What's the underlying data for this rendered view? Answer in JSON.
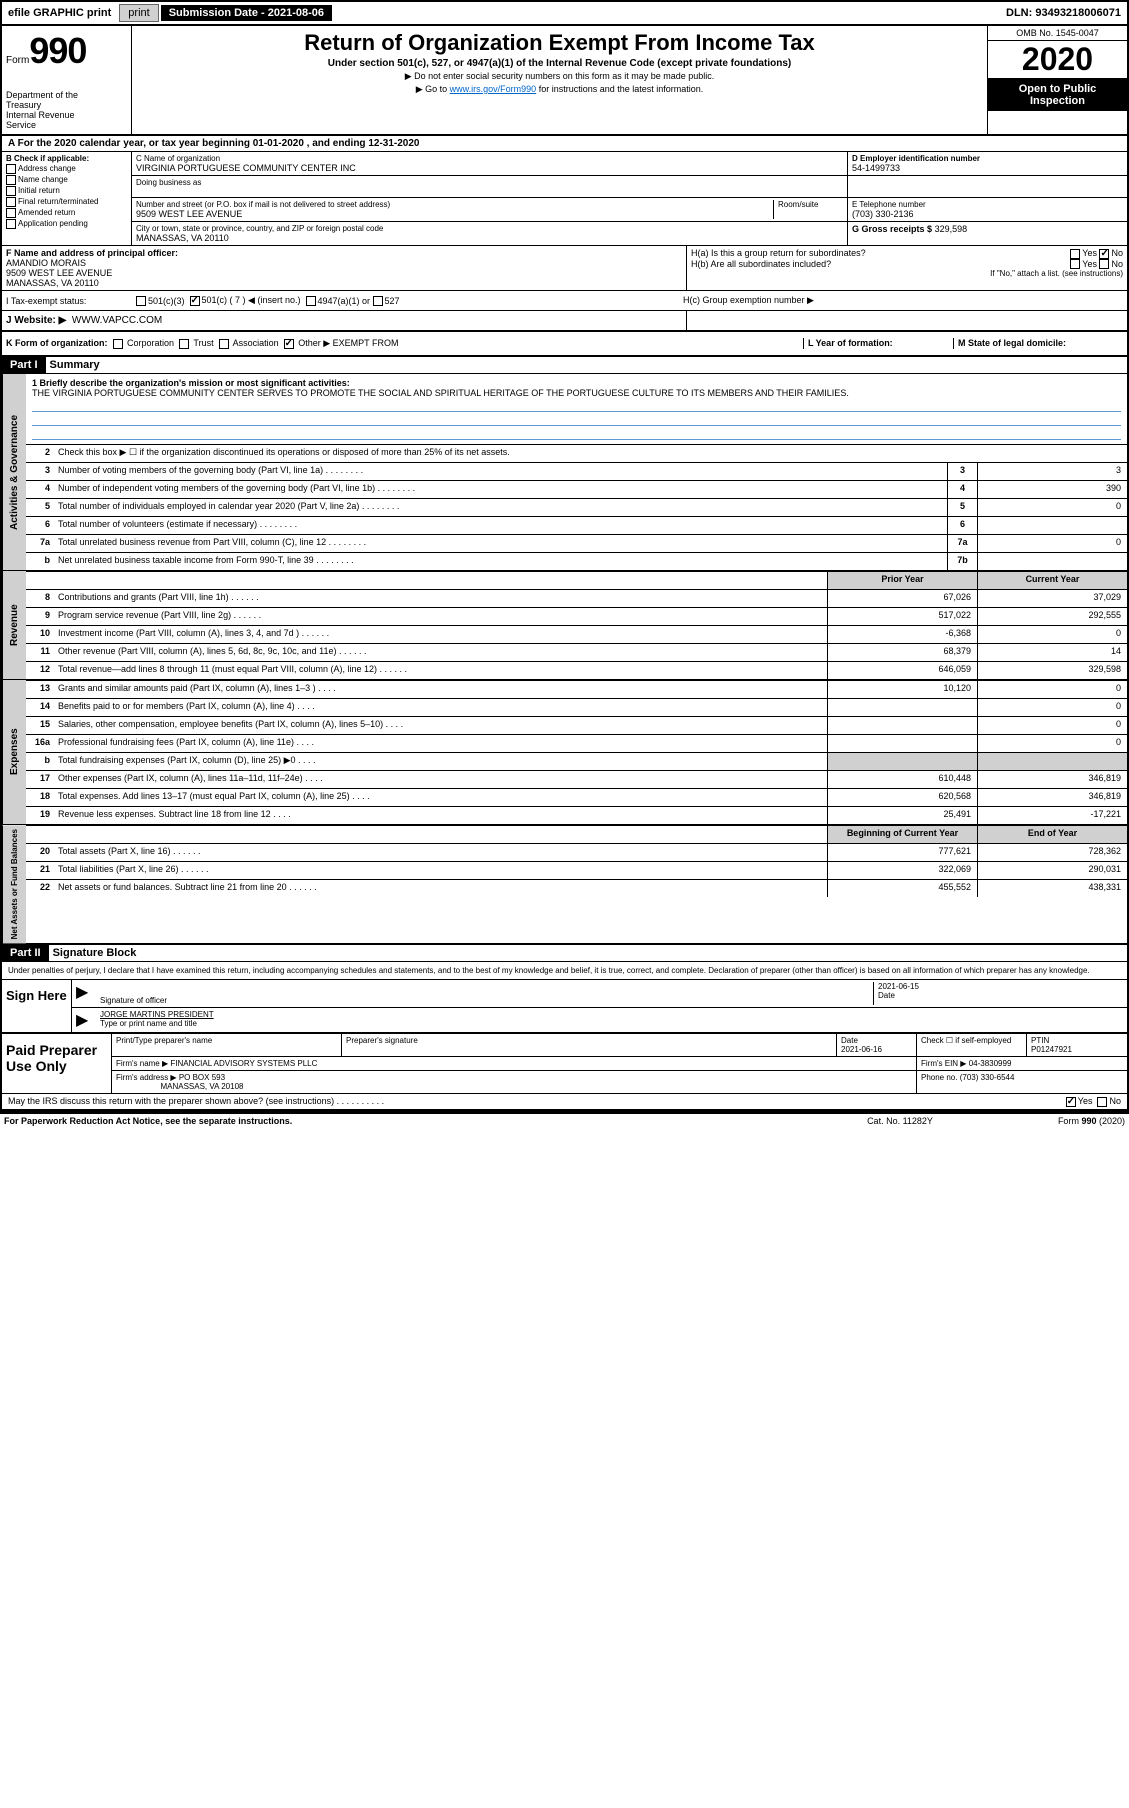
{
  "topbar": {
    "efile": "efile GRAPHIC print",
    "sub_date_label": "Submission Date - 2021-08-06",
    "dln": "DLN: 93493218006071"
  },
  "header": {
    "form_label": "Form",
    "form_number": "990",
    "dept": "Department of the Treasury\nInternal Revenue Service",
    "title": "Return of Organization Exempt From Income Tax",
    "subtitle": "Under section 501(c), 527, or 4947(a)(1) of the Internal Revenue Code (except private foundations)",
    "note1": "▶ Do not enter social security numbers on this form as it may be made public.",
    "note2_pre": "▶ Go to ",
    "note2_link": "www.irs.gov/Form990",
    "note2_post": " for instructions and the latest information.",
    "omb": "OMB No. 1545-0047",
    "year": "2020",
    "open_public": "Open to Public Inspection"
  },
  "line_a": "A For the 2020 calendar year, or tax year beginning 01-01-2020    , and ending 12-31-2020",
  "box_b": {
    "title": "B Check if applicable:",
    "items": [
      "Address change",
      "Name change",
      "Initial return",
      "Final return/terminated",
      "Amended return",
      "Application pending"
    ]
  },
  "box_c": {
    "name_label": "C Name of organization",
    "name": "VIRGINIA PORTUGUESE COMMUNITY CENTER INC",
    "dba_label": "Doing business as",
    "addr_label": "Number and street (or P.O. box if mail is not delivered to street address)",
    "room_label": "Room/suite",
    "addr": "9509 WEST LEE AVENUE",
    "city_label": "City or town, state or province, country, and ZIP or foreign postal code",
    "city": "MANASSAS, VA  20110"
  },
  "box_d": {
    "label": "D Employer identification number",
    "value": "54-1499733"
  },
  "box_e": {
    "label": "E Telephone number",
    "value": "(703) 330-2136"
  },
  "box_g": {
    "label": "G Gross receipts $",
    "value": "329,598"
  },
  "box_f": {
    "label": "F  Name and address of principal officer:",
    "name": "AMANDIO MORAIS",
    "addr1": "9509 WEST LEE AVENUE",
    "addr2": "MANASSAS, VA  20110"
  },
  "box_h": {
    "ha": "H(a)  Is this a group return for subordinates?",
    "hb": "H(b)  Are all subordinates included?",
    "hb_note": "If \"No,\" attach a list. (see instructions)",
    "hc": "H(c)  Group exemption number ▶",
    "yes": "Yes",
    "no": "No"
  },
  "line_i": {
    "label": "I    Tax-exempt status:",
    "opt1": "501(c)(3)",
    "opt2": "501(c) ( 7 ) ◀ (insert no.)",
    "opt3": "4947(a)(1) or",
    "opt4": "527"
  },
  "line_j": {
    "label": "J    Website: ▶",
    "value": "WWW.VAPCC.COM"
  },
  "line_k": {
    "label": "K Form of organization:",
    "opts": [
      "Corporation",
      "Trust",
      "Association",
      "Other ▶"
    ],
    "other_val": "EXEMPT FROM"
  },
  "line_l": {
    "label": "L Year of formation:"
  },
  "line_m": {
    "label": "M State of legal domicile:"
  },
  "part1": {
    "hdr": "Part I",
    "title": "Summary",
    "q1_label": "1  Briefly describe the organization's mission or most significant activities:",
    "q1_text": "THE VIRGINIA PORTUGUESE COMMUNITY CENTER SERVES TO PROMOTE THE SOCIAL AND SPIRITUAL HERITAGE OF THE PORTUGUESE CULTURE TO ITS MEMBERS AND THEIR FAMILIES.",
    "q2": "Check this box ▶ ☐ if the organization discontinued its operations or disposed of more than 25% of its net assets.",
    "side_gov": "Activities & Governance",
    "side_rev": "Revenue",
    "side_exp": "Expenses",
    "side_net": "Net Assets or Fund Balances",
    "prior_year": "Prior Year",
    "current_year": "Current Year",
    "begin_year": "Beginning of Current Year",
    "end_year": "End of Year",
    "rows_gov": [
      {
        "n": "3",
        "lbl": "Number of voting members of the governing body (Part VI, line 1a)",
        "box": "3",
        "val": "3"
      },
      {
        "n": "4",
        "lbl": "Number of independent voting members of the governing body (Part VI, line 1b)",
        "box": "4",
        "val": "390"
      },
      {
        "n": "5",
        "lbl": "Total number of individuals employed in calendar year 2020 (Part V, line 2a)",
        "box": "5",
        "val": "0"
      },
      {
        "n": "6",
        "lbl": "Total number of volunteers (estimate if necessary)",
        "box": "6",
        "val": ""
      },
      {
        "n": "7a",
        "lbl": "Total unrelated business revenue from Part VIII, column (C), line 12",
        "box": "7a",
        "val": "0"
      },
      {
        "n": "b",
        "lbl": "Net unrelated business taxable income from Form 990-T, line 39",
        "box": "7b",
        "val": ""
      }
    ],
    "rows_rev": [
      {
        "n": "8",
        "lbl": "Contributions and grants (Part VIII, line 1h)",
        "py": "67,026",
        "cy": "37,029"
      },
      {
        "n": "9",
        "lbl": "Program service revenue (Part VIII, line 2g)",
        "py": "517,022",
        "cy": "292,555"
      },
      {
        "n": "10",
        "lbl": "Investment income (Part VIII, column (A), lines 3, 4, and 7d )",
        "py": "-6,368",
        "cy": "0"
      },
      {
        "n": "11",
        "lbl": "Other revenue (Part VIII, column (A), lines 5, 6d, 8c, 9c, 10c, and 11e)",
        "py": "68,379",
        "cy": "14"
      },
      {
        "n": "12",
        "lbl": "Total revenue—add lines 8 through 11 (must equal Part VIII, column (A), line 12)",
        "py": "646,059",
        "cy": "329,598"
      }
    ],
    "rows_exp": [
      {
        "n": "13",
        "lbl": "Grants and similar amounts paid (Part IX, column (A), lines 1–3 )",
        "py": "10,120",
        "cy": "0"
      },
      {
        "n": "14",
        "lbl": "Benefits paid to or for members (Part IX, column (A), line 4)",
        "py": "",
        "cy": "0"
      },
      {
        "n": "15",
        "lbl": "Salaries, other compensation, employee benefits (Part IX, column (A), lines 5–10)",
        "py": "",
        "cy": "0"
      },
      {
        "n": "16a",
        "lbl": "Professional fundraising fees (Part IX, column (A), line 11e)",
        "py": "",
        "cy": "0"
      },
      {
        "n": "b",
        "lbl": "Total fundraising expenses (Part IX, column (D), line 25) ▶0",
        "py": "grey",
        "cy": "grey"
      },
      {
        "n": "17",
        "lbl": "Other expenses (Part IX, column (A), lines 11a–11d, 11f–24e)",
        "py": "610,448",
        "cy": "346,819"
      },
      {
        "n": "18",
        "lbl": "Total expenses. Add lines 13–17 (must equal Part IX, column (A), line 25)",
        "py": "620,568",
        "cy": "346,819"
      },
      {
        "n": "19",
        "lbl": "Revenue less expenses. Subtract line 18 from line 12",
        "py": "25,491",
        "cy": "-17,221"
      }
    ],
    "rows_net": [
      {
        "n": "20",
        "lbl": "Total assets (Part X, line 16)",
        "py": "777,621",
        "cy": "728,362"
      },
      {
        "n": "21",
        "lbl": "Total liabilities (Part X, line 26)",
        "py": "322,069",
        "cy": "290,031"
      },
      {
        "n": "22",
        "lbl": "Net assets or fund balances. Subtract line 21 from line 20",
        "py": "455,552",
        "cy": "438,331"
      }
    ]
  },
  "part2": {
    "hdr": "Part II",
    "title": "Signature Block",
    "decl": "Under penalties of perjury, I declare that I have examined this return, including accompanying schedules and statements, and to the best of my knowledge and belief, it is true, correct, and complete. Declaration of preparer (other than officer) is based on all information of which preparer has any knowledge.",
    "sign_here": "Sign Here",
    "sig_officer": "Signature of officer",
    "date_label": "Date",
    "date_value": "2021-06-15",
    "name_title": "JORGE MARTINS PRESIDENT",
    "name_title_label": "Type or print name and title",
    "paid_prep": "Paid Preparer Use Only",
    "prep_name_label": "Print/Type preparer's name",
    "prep_sig_label": "Preparer's signature",
    "prep_date_label": "Date",
    "prep_date": "2021-06-16",
    "check_self": "Check ☐ if self-employed",
    "ptin_label": "PTIN",
    "ptin": "P01247921",
    "firm_name_label": "Firm's name    ▶",
    "firm_name": "FINANCIAL ADVISORY SYSTEMS PLLC",
    "firm_ein_label": "Firm's EIN ▶",
    "firm_ein": "04-3830999",
    "firm_addr_label": "Firm's address ▶",
    "firm_addr1": "PO BOX 593",
    "firm_addr2": "MANASSAS, VA  20108",
    "phone_label": "Phone no.",
    "phone": "(703) 330-6544",
    "discuss": "May the IRS discuss this return with the preparer shown above? (see instructions)",
    "yes": "Yes",
    "no": "No"
  },
  "footer": {
    "left": "For Paperwork Reduction Act Notice, see the separate instructions.",
    "mid": "Cat. No. 11282Y",
    "right": "Form 990 (2020)"
  }
}
